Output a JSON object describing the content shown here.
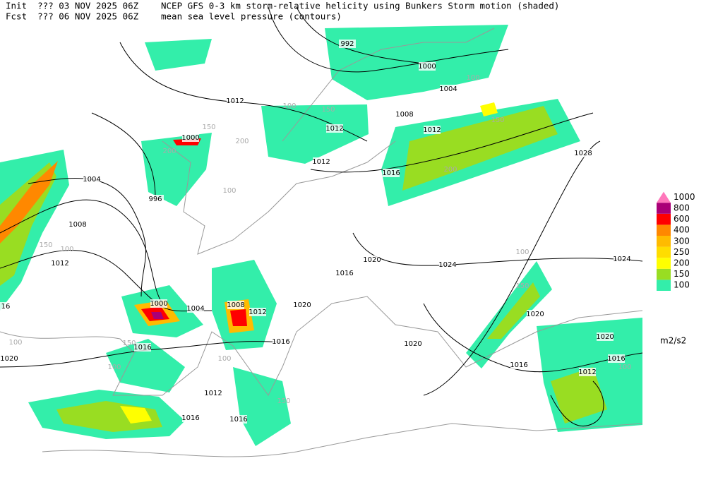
{
  "header": {
    "init": "Init  ??? 03 NOV 2025 06Z",
    "fcst": "Fcst  ??? 06 NOV 2025 06Z",
    "title": "NCEP GFS 0-3 km storm-relative helicity using Bunkers Storm motion (shaded)",
    "subtitle": "mean sea level pressure (contours)"
  },
  "legend": {
    "levels": [
      100,
      150,
      200,
      250,
      300,
      400,
      600,
      800,
      1000
    ],
    "colors": [
      "#33eeaa",
      "#99dd22",
      "#ffff00",
      "#ffdd00",
      "#ffbb00",
      "#ff8800",
      "#ff0000",
      "#aa0077",
      "#ff77bb"
    ],
    "units": "m2/s2"
  },
  "contour_labels": [
    992,
    1000,
    1004,
    1012,
    1008,
    1012,
    1012,
    1000,
    1012,
    1016,
    1028,
    1004,
    996,
    1008,
    1012,
    1016,
    1020,
    1024,
    1024,
    1000,
    1004,
    1008,
    1012,
    1020,
    16,
    1016,
    1016,
    1020,
    1020,
    1020,
    1020,
    1016,
    1016,
    1012,
    1012,
    1016,
    1016
  ],
  "shading_labels": [
    100,
    150,
    100,
    150,
    100,
    200,
    150,
    100,
    100,
    150,
    200,
    100,
    150,
    200,
    100,
    150,
    100,
    150,
    100
  ]
}
